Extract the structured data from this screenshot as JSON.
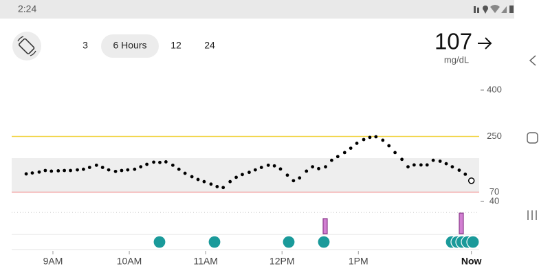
{
  "status_bar": {
    "time": "2:24"
  },
  "range_tabs": [
    "3",
    "6 Hours",
    "12",
    "24"
  ],
  "reading": {
    "value": 107,
    "unit": "mg/dL"
  },
  "chart_data": {
    "type": "scatter",
    "color": "#000000",
    "x": [
      8.65,
      8.73,
      8.82,
      8.9,
      8.98,
      9.07,
      9.15,
      9.23,
      9.32,
      9.4,
      9.48,
      9.57,
      9.65,
      9.73,
      9.82,
      9.9,
      9.98,
      10.07,
      10.15,
      10.23,
      10.32,
      10.4,
      10.48,
      10.57,
      10.65,
      10.73,
      10.82,
      10.9,
      10.98,
      11.07,
      11.15,
      11.23,
      11.32,
      11.4,
      11.48,
      11.57,
      11.65,
      11.73,
      11.82,
      11.9,
      11.98,
      12.07,
      12.15,
      12.23,
      12.32,
      12.4,
      12.48,
      12.57,
      12.65,
      12.73,
      12.82,
      12.9,
      12.98,
      13.07,
      13.15,
      13.23,
      13.32,
      13.4,
      13.48,
      13.57,
      13.65,
      13.73,
      13.82,
      13.9,
      13.98,
      14.07,
      14.15,
      14.23,
      14.32,
      14.4,
      14.48
    ],
    "values": [
      129,
      132,
      135,
      140,
      138,
      139,
      140,
      140,
      142,
      144,
      150,
      157,
      150,
      142,
      137,
      140,
      142,
      144,
      152,
      160,
      167,
      166,
      168,
      157,
      144,
      131,
      120,
      111,
      104,
      96,
      88,
      85,
      104,
      118,
      127,
      134,
      142,
      150,
      157,
      155,
      145,
      125,
      107,
      116,
      138,
      152,
      146,
      152,
      173,
      185,
      198,
      212,
      228,
      240,
      247,
      249,
      238,
      220,
      198,
      176,
      152,
      158,
      158,
      158,
      173,
      170,
      162,
      152,
      141,
      128,
      107
    ],
    "xlim": [
      8.46,
      14.6
    ],
    "ylim": [
      0,
      420
    ],
    "xticks": [
      {
        "value": 9,
        "label": "9AM"
      },
      {
        "value": 10,
        "label": "10AM"
      },
      {
        "value": 11,
        "label": "11AM"
      },
      {
        "value": 12,
        "label": "12PM"
      },
      {
        "value": 13,
        "label": "1PM"
      },
      {
        "value": 14.48,
        "label": "Now"
      }
    ],
    "yticks": [
      400,
      250,
      70,
      40
    ],
    "high": 250,
    "low": 70,
    "target_range": [
      70,
      180
    ]
  }
}
